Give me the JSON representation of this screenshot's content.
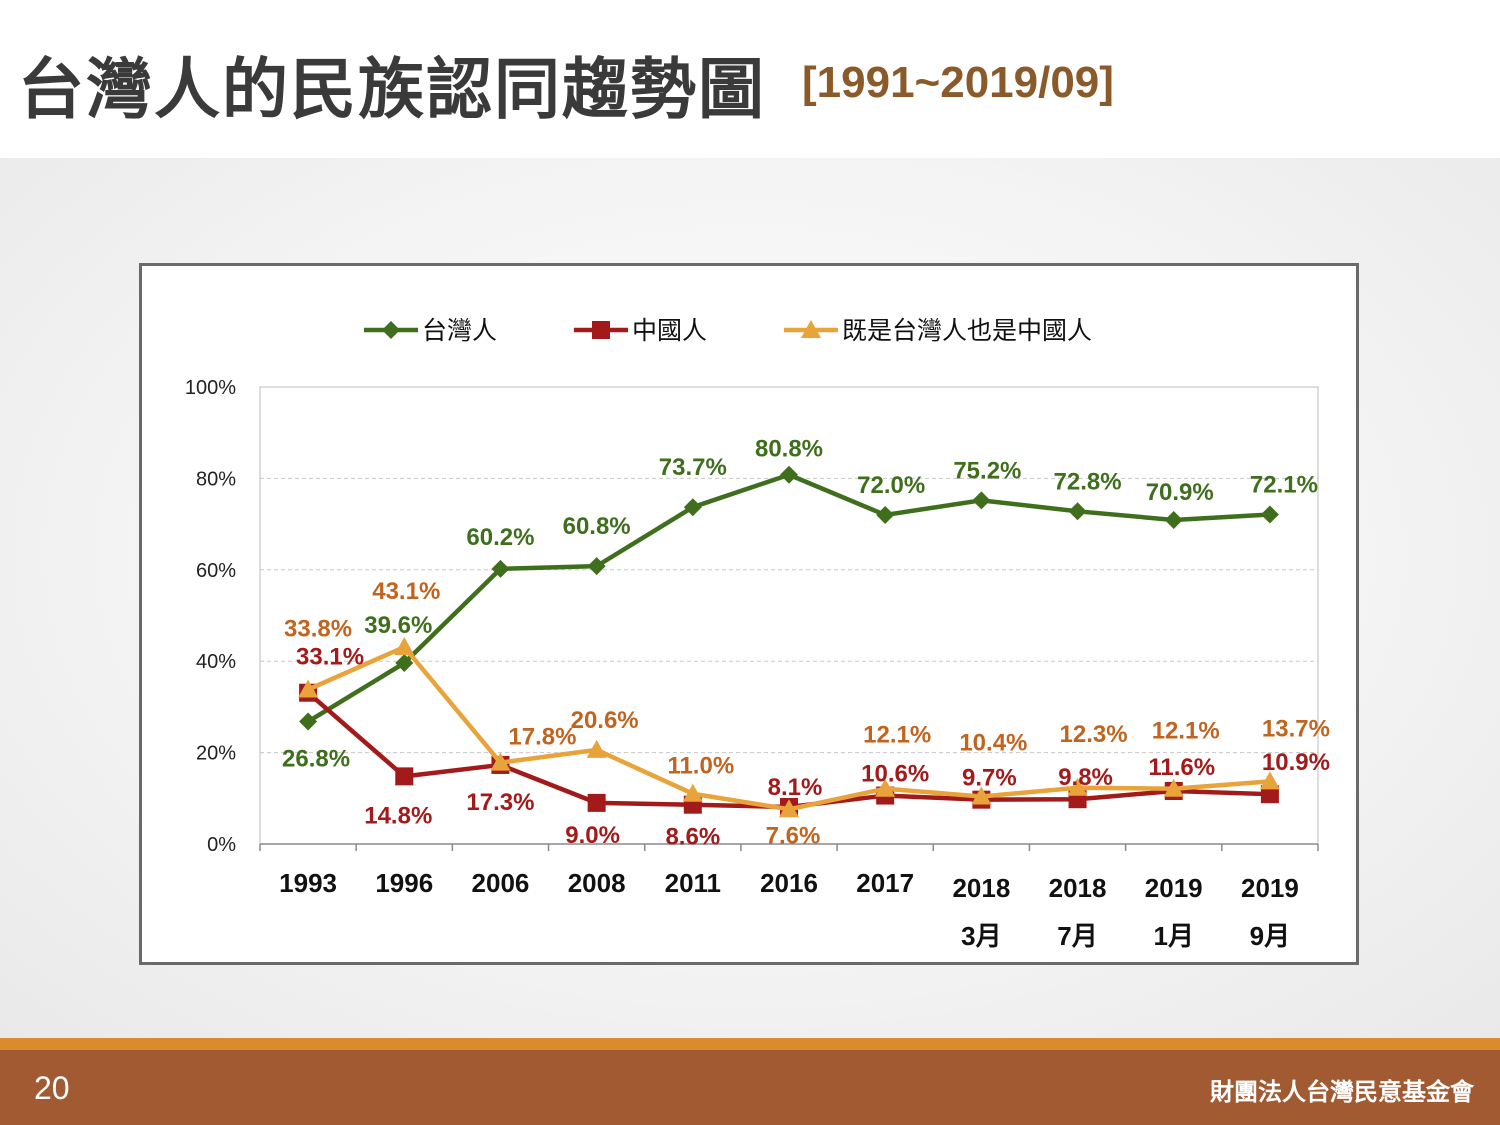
{
  "slide": {
    "title": "台灣人的民族認同趨勢圖",
    "title_range": "[1991~2019/09]",
    "page_number": "20",
    "organization": "財團法人台灣民意基金會"
  },
  "colors": {
    "title": "#3a3a3a",
    "title_range": "#8b5a2b",
    "footer": "#a25a33",
    "footer_stripe": "#d98c2b"
  },
  "chart_data": {
    "type": "line",
    "categories": [
      [
        "1993"
      ],
      [
        "1996"
      ],
      [
        "2006"
      ],
      [
        "2008"
      ],
      [
        "2011"
      ],
      [
        "2016"
      ],
      [
        "2017"
      ],
      [
        "2018",
        "3月"
      ],
      [
        "2018",
        "7月"
      ],
      [
        "2019",
        "1月"
      ],
      [
        "2019",
        "9月"
      ]
    ],
    "ylim": [
      0,
      100
    ],
    "yticks": [
      0,
      20,
      40,
      60,
      80,
      100
    ],
    "ytick_labels": [
      "0%",
      "20%",
      "40%",
      "60%",
      "80%",
      "100%"
    ],
    "grid": true,
    "legend_position": "top",
    "series": [
      {
        "name": "台灣人",
        "color": "#3f6f1d",
        "label_color": "#3f6f1d",
        "marker": "diamond",
        "values": [
          26.8,
          39.6,
          60.2,
          60.8,
          73.7,
          80.8,
          72.0,
          75.2,
          72.8,
          70.9,
          72.1
        ],
        "labels": [
          "26.8%",
          "39.6%",
          "60.2%",
          "60.8%",
          "73.7%",
          "80.8%",
          "72.0%",
          "75.2%",
          "72.8%",
          "70.9%",
          "72.1%"
        ]
      },
      {
        "name": "中國人",
        "color": "#a21a1a",
        "label_color": "#a21a1a",
        "marker": "square",
        "values": [
          33.1,
          14.8,
          17.3,
          9.0,
          8.6,
          8.1,
          10.6,
          9.7,
          9.8,
          11.6,
          10.9
        ],
        "labels": [
          "33.1%",
          "14.8%",
          "17.3%",
          "9.0%",
          "8.6%",
          "8.1%",
          "10.6%",
          "9.7%",
          "9.8%",
          "11.6%",
          "10.9%"
        ]
      },
      {
        "name": "既是台灣人也是中國人",
        "color": "#e8a33a",
        "label_color": "#c0641f",
        "marker": "triangle",
        "values": [
          33.8,
          43.1,
          17.8,
          20.6,
          11.0,
          7.6,
          12.1,
          10.4,
          12.3,
          12.1,
          13.7
        ],
        "labels": [
          "33.8%",
          "43.1%",
          "17.8%",
          "20.6%",
          "11.0%",
          "7.6%",
          "12.1%",
          "10.4%",
          "12.3%",
          "12.1%",
          "13.7%"
        ]
      }
    ]
  }
}
